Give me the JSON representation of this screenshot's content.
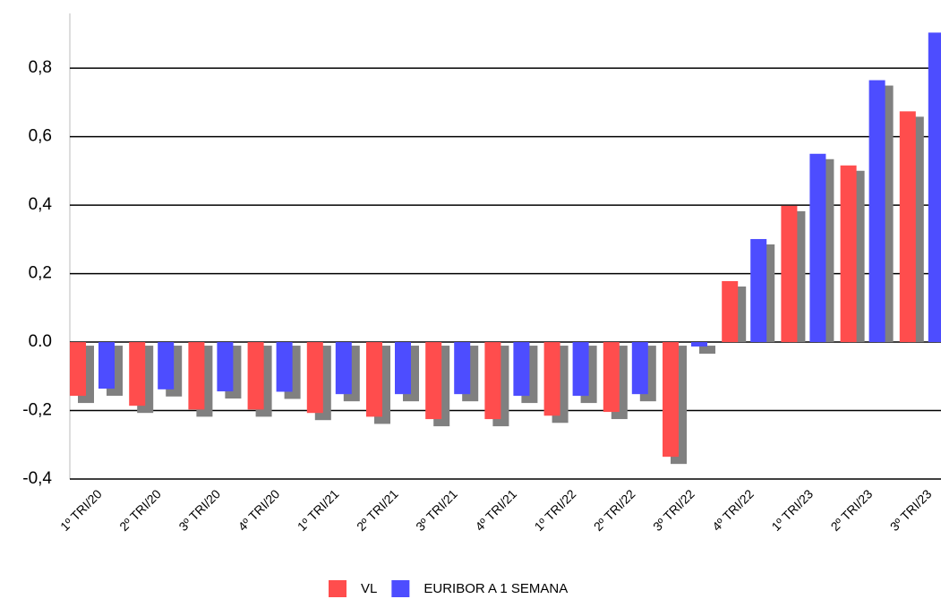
{
  "chart_data": {
    "type": "bar",
    "categories": [
      "1º TRI/20",
      "2º TRI/20",
      "3º TRI/20",
      "4º TRI/20",
      "1º TRI/21",
      "2º TRI/21",
      "3º TRI/21",
      "4º TRI/21",
      "1º TRI/22",
      "2º TRI/22",
      "3º TRI/22",
      "4º TRI/22",
      "1º TRI/23",
      "2º TRI/23",
      "3º TRI/23"
    ],
    "series": [
      {
        "name": "VL",
        "color": "#ff4d4d",
        "values": [
          -0.157,
          -0.186,
          -0.197,
          -0.197,
          -0.207,
          -0.218,
          -0.225,
          -0.225,
          -0.215,
          -0.204,
          -0.335,
          0.178,
          0.398,
          0.516,
          0.674
        ]
      },
      {
        "name": "EURIBOR A 1 SEMANA",
        "color": "#4d4dff",
        "values": [
          -0.136,
          -0.138,
          -0.144,
          -0.145,
          -0.152,
          -0.152,
          -0.152,
          -0.157,
          -0.157,
          -0.152,
          -0.013,
          0.301,
          0.55,
          0.765,
          0.904
        ]
      }
    ],
    "ylim": [
      -0.4,
      0.96
    ],
    "yticks": [
      {
        "value": -0.4,
        "label": "-0,4"
      },
      {
        "value": -0.2,
        "label": "-0,2"
      },
      {
        "value": 0,
        "label": "0.0"
      },
      {
        "value": 0.2,
        "label": "0,2"
      },
      {
        "value": 0.4,
        "label": "0,4"
      },
      {
        "value": 0.6,
        "label": "0,6"
      },
      {
        "value": 0.8,
        "label": "0,8"
      }
    ],
    "grid": true,
    "shadow_color": "#808080"
  }
}
